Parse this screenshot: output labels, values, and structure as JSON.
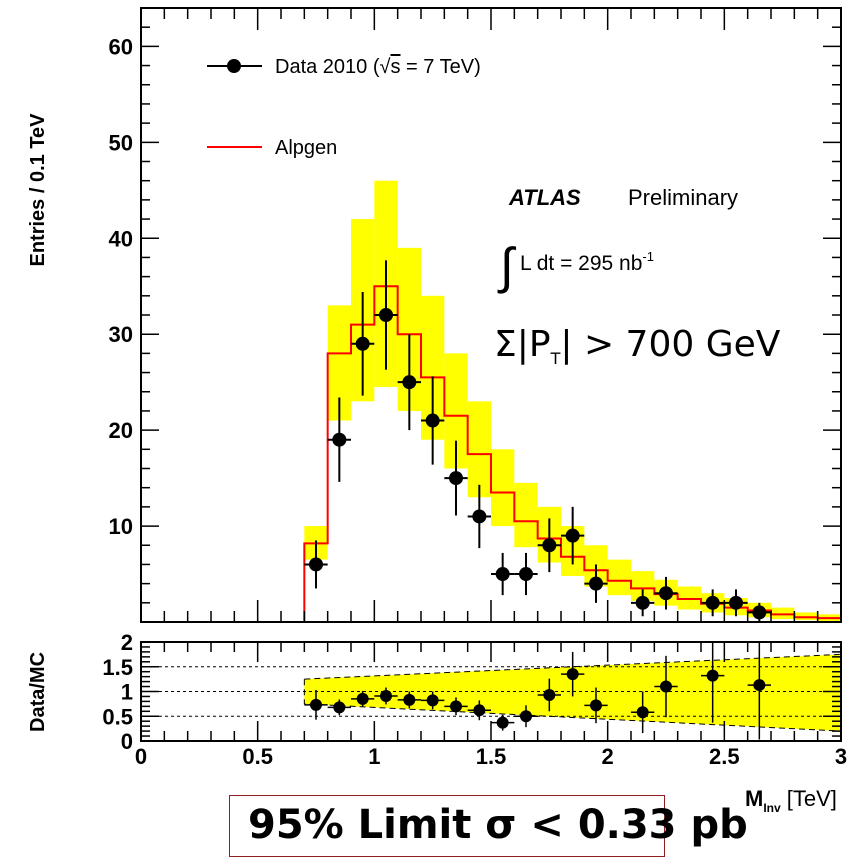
{
  "chart_data": {
    "type": "histogram-ratio",
    "main": {
      "ylabel": "Entries / 0.1 TeV",
      "ylim": [
        0,
        64
      ],
      "yticks": [
        "10",
        "20",
        "30",
        "40",
        "50",
        "60"
      ],
      "bin_width": 0.1,
      "data_points": [
        {
          "x": 0.75,
          "y": 6,
          "err": 2.5
        },
        {
          "x": 0.85,
          "y": 19,
          "err": 4.4
        },
        {
          "x": 0.95,
          "y": 29,
          "err": 5.4
        },
        {
          "x": 1.05,
          "y": 32,
          "err": 5.7
        },
        {
          "x": 1.15,
          "y": 25,
          "err": 5.0
        },
        {
          "x": 1.25,
          "y": 21,
          "err": 4.6
        },
        {
          "x": 1.35,
          "y": 15,
          "err": 3.9
        },
        {
          "x": 1.45,
          "y": 11,
          "err": 3.3
        },
        {
          "x": 1.55,
          "y": 5,
          "err": 2.2
        },
        {
          "x": 1.65,
          "y": 5,
          "err": 2.2
        },
        {
          "x": 1.75,
          "y": 8,
          "err": 2.8
        },
        {
          "x": 1.85,
          "y": 9,
          "err": 3.0
        },
        {
          "x": 1.95,
          "y": 4,
          "err": 2.0
        },
        {
          "x": 2.15,
          "y": 2,
          "err": 1.4
        },
        {
          "x": 2.25,
          "y": 3,
          "err": 1.7
        },
        {
          "x": 2.45,
          "y": 2,
          "err": 1.4
        },
        {
          "x": 2.55,
          "y": 2,
          "err": 1.4
        },
        {
          "x": 2.65,
          "y": 1,
          "err": 1.0
        }
      ],
      "alpgen": {
        "edges": [
          0.0,
          0.7,
          0.8,
          0.9,
          1.0,
          1.1,
          1.2,
          1.3,
          1.4,
          1.5,
          1.6,
          1.7,
          1.8,
          1.9,
          2.0,
          2.1,
          2.2,
          2.3,
          2.4,
          2.5,
          2.6,
          2.7,
          2.8,
          2.9,
          3.0
        ],
        "values": [
          0,
          8.2,
          28,
          31,
          35,
          30,
          25.5,
          21.5,
          17.5,
          13.5,
          10.5,
          8.7,
          6.8,
          5.4,
          4.3,
          3.5,
          2.9,
          2.4,
          1.9,
          1.5,
          1.2,
          0.8,
          0.5,
          0.4
        ],
        "band_low": [
          0,
          6.5,
          21,
          23,
          24.5,
          22,
          19,
          16,
          13,
          10,
          7.8,
          6.2,
          4.8,
          3.7,
          2.8,
          2.2,
          1.7,
          1.3,
          1.0,
          0.7,
          0.5,
          0.3,
          0.2,
          0.1
        ],
        "band_high": [
          0,
          10,
          33,
          42,
          46,
          39,
          34,
          28,
          23,
          18,
          14.5,
          12,
          10,
          8,
          6.5,
          5.3,
          4.4,
          3.7,
          3.0,
          2.5,
          2.0,
          1.5,
          1.0,
          0.8
        ]
      }
    },
    "ratio": {
      "ylabel": "Data/MC",
      "ylim": [
        0,
        2
      ],
      "yticks": [
        "0",
        "0.5",
        "1",
        "1.5",
        "2"
      ],
      "reference_lines": [
        0.5,
        1,
        1.5
      ],
      "band_edges": [
        0.7,
        3.0
      ],
      "band_low_start": 0.75,
      "band_low_end": 0.2,
      "band_high_start": 1.25,
      "band_high_end": 1.75,
      "points": [
        {
          "x": 0.75,
          "y": 0.73,
          "err": 0.3
        },
        {
          "x": 0.85,
          "y": 0.68,
          "err": 0.16
        },
        {
          "x": 0.95,
          "y": 0.85,
          "err": 0.16
        },
        {
          "x": 1.05,
          "y": 0.91,
          "err": 0.17
        },
        {
          "x": 1.15,
          "y": 0.83,
          "err": 0.17
        },
        {
          "x": 1.25,
          "y": 0.82,
          "err": 0.18
        },
        {
          "x": 1.35,
          "y": 0.7,
          "err": 0.18
        },
        {
          "x": 1.45,
          "y": 0.62,
          "err": 0.2
        },
        {
          "x": 1.55,
          "y": 0.37,
          "err": 0.16
        },
        {
          "x": 1.65,
          "y": 0.5,
          "err": 0.22
        },
        {
          "x": 1.75,
          "y": 0.93,
          "err": 0.33
        },
        {
          "x": 1.85,
          "y": 1.35,
          "err": 0.45
        },
        {
          "x": 1.95,
          "y": 0.72,
          "err": 0.36
        },
        {
          "x": 2.15,
          "y": 0.58,
          "err": 0.42
        },
        {
          "x": 2.25,
          "y": 1.1,
          "err": 0.62
        },
        {
          "x": 2.45,
          "y": 1.32,
          "err": 0.95
        },
        {
          "x": 2.65,
          "y": 1.13,
          "err": 1.1
        }
      ]
    },
    "xaxis": {
      "label_main": "M",
      "label_sub": "Inv",
      "label_unit": " [TeV]",
      "xlim": [
        0,
        3
      ],
      "xticks": [
        "0",
        "0.5",
        "1",
        "1.5",
        "2",
        "2.5",
        "3"
      ]
    },
    "legend": {
      "data_label_pre": "Data 2010 (",
      "data_label_sqrt": "s",
      "data_label_post": " = 7 TeV)",
      "alpgen_label": "Alpgen",
      "placement": "top-left"
    },
    "annotations": {
      "atlas": "ATLAS",
      "preliminary": "Preliminary",
      "lumi_integral": "∫",
      "lumi_text": "L dt = 295 nb",
      "lumi_sup": "-1",
      "cut_pre": "Σ|P",
      "cut_sub": "T",
      "cut_post": "| > 700 GeV"
    },
    "colors": {
      "band": "#ffff00",
      "alpgen_line": "#ff0000",
      "data": "#000000",
      "limit_box_border": "#8b2020"
    }
  },
  "footer": {
    "limit_text": "95% Limit σ < 0.33 pb"
  }
}
